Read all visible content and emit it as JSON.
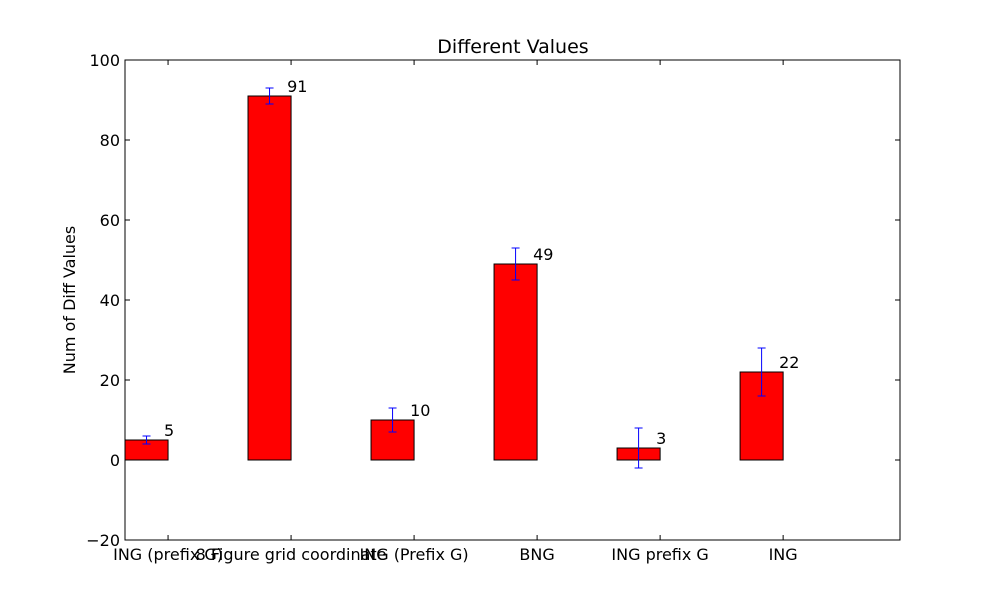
{
  "chart_data": {
    "type": "bar",
    "title": "Different Values",
    "xlabel": "",
    "ylabel": "Num of Diff Values",
    "ylim": [
      -20,
      100
    ],
    "yticks": [
      -20,
      0,
      20,
      40,
      60,
      80,
      100
    ],
    "grid": false,
    "categories": [
      "ING (prefix G)",
      "8 Figure grid coordinate",
      "ING (Prefix G)",
      "BNG",
      "ING prefix G",
      "ING"
    ],
    "values": [
      5,
      91,
      10,
      49,
      3,
      22
    ],
    "errors": [
      1,
      2,
      3,
      4,
      5,
      6
    ],
    "data_labels": [
      "5",
      "91",
      "10",
      "49",
      "3",
      "22"
    ],
    "bar_color": "#ff0000",
    "error_color": "#0000ff"
  }
}
